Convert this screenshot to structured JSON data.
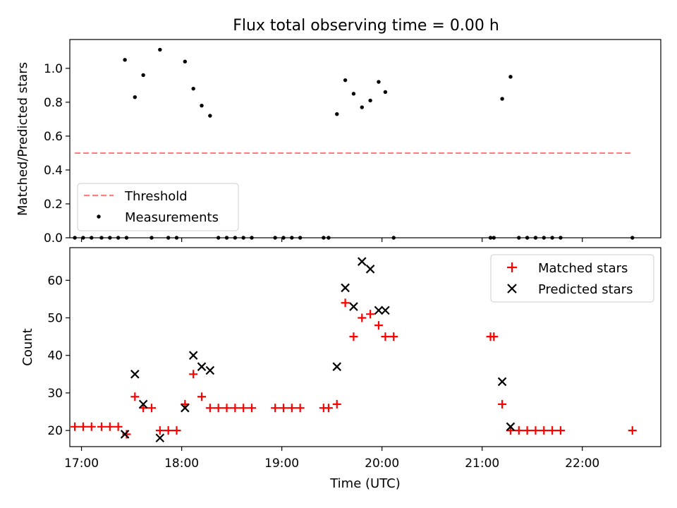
{
  "figure": {
    "title": "Flux total observing time = 0.00 h"
  },
  "chart_data": [
    {
      "type": "scatter",
      "ylabel": "Matched/Predicted stars",
      "xlabel": "",
      "xlim": [
        "16:53",
        "22:47"
      ],
      "ylim": [
        0,
        1.17
      ],
      "y_ticks": [
        "0.0",
        "0.2",
        "0.4",
        "0.6",
        "0.8",
        "1.0"
      ],
      "grid": false,
      "legend_position": "lower-left",
      "series": [
        {
          "name": "Threshold",
          "style": "dashed",
          "color": "#ff7f7f",
          "points": [
            [
              "16:56",
              0.5
            ],
            [
              "22:30",
              0.5
            ]
          ]
        },
        {
          "name": "Measurements",
          "marker": "dot",
          "color": "#000000",
          "points": [
            [
              "16:56",
              0.0
            ],
            [
              "17:01",
              0.0
            ],
            [
              "17:06",
              0.0
            ],
            [
              "17:12",
              0.0
            ],
            [
              "17:17",
              0.0
            ],
            [
              "17:22",
              0.0
            ],
            [
              "17:27",
              0.0
            ],
            [
              "17:26",
              1.05
            ],
            [
              "17:32",
              0.83
            ],
            [
              "17:37",
              0.96
            ],
            [
              "17:42",
              0.0
            ],
            [
              "17:47",
              1.11
            ],
            [
              "17:52",
              0.0
            ],
            [
              "17:57",
              0.0
            ],
            [
              "18:02",
              1.04
            ],
            [
              "18:07",
              0.88
            ],
            [
              "18:12",
              0.78
            ],
            [
              "18:17",
              0.72
            ],
            [
              "18:22",
              0.0
            ],
            [
              "18:27",
              0.0
            ],
            [
              "18:32",
              0.0
            ],
            [
              "18:37",
              0.0
            ],
            [
              "18:42",
              0.0
            ],
            [
              "18:56",
              0.0
            ],
            [
              "19:01",
              0.0
            ],
            [
              "19:06",
              0.0
            ],
            [
              "19:11",
              0.0
            ],
            [
              "19:25",
              0.0
            ],
            [
              "19:28",
              0.0
            ],
            [
              "19:33",
              0.73
            ],
            [
              "19:38",
              0.93
            ],
            [
              "19:43",
              0.85
            ],
            [
              "19:48",
              0.77
            ],
            [
              "19:53",
              0.81
            ],
            [
              "19:58",
              0.92
            ],
            [
              "20:02",
              0.86
            ],
            [
              "20:07",
              0.0
            ],
            [
              "21:05",
              0.0
            ],
            [
              "21:07",
              0.0
            ],
            [
              "21:12",
              0.82
            ],
            [
              "21:17",
              0.95
            ],
            [
              "21:22",
              0.0
            ],
            [
              "21:27",
              0.0
            ],
            [
              "21:32",
              0.0
            ],
            [
              "21:37",
              0.0
            ],
            [
              "21:42",
              0.0
            ],
            [
              "21:47",
              0.0
            ],
            [
              "22:30",
              0.0
            ]
          ]
        }
      ]
    },
    {
      "type": "scatter",
      "ylabel": "Count",
      "xlabel": "Time (UTC)",
      "xlim": [
        "16:53",
        "22:47"
      ],
      "ylim": [
        15.7,
        68.7
      ],
      "x_ticks": [
        "17:00",
        "18:00",
        "19:00",
        "20:00",
        "21:00",
        "22:00"
      ],
      "y_ticks": [
        "20",
        "30",
        "40",
        "50",
        "60"
      ],
      "grid": false,
      "legend_position": "upper-right",
      "series": [
        {
          "name": "Matched stars",
          "marker": "plus",
          "color": "#ff0000",
          "points": [
            [
              "16:56",
              21
            ],
            [
              "17:01",
              21
            ],
            [
              "17:06",
              21
            ],
            [
              "17:12",
              21
            ],
            [
              "17:17",
              21
            ],
            [
              "17:22",
              21
            ],
            [
              "17:27",
              19
            ],
            [
              "17:32",
              29
            ],
            [
              "17:37",
              26
            ],
            [
              "17:42",
              26
            ],
            [
              "17:47",
              20
            ],
            [
              "17:52",
              20
            ],
            [
              "17:57",
              20
            ],
            [
              "18:02",
              27
            ],
            [
              "18:07",
              35
            ],
            [
              "18:12",
              29
            ],
            [
              "18:17",
              26
            ],
            [
              "18:22",
              26
            ],
            [
              "18:27",
              26
            ],
            [
              "18:32",
              26
            ],
            [
              "18:37",
              26
            ],
            [
              "18:42",
              26
            ],
            [
              "18:56",
              26
            ],
            [
              "19:01",
              26
            ],
            [
              "19:06",
              26
            ],
            [
              "19:11",
              26
            ],
            [
              "19:25",
              26
            ],
            [
              "19:28",
              26
            ],
            [
              "19:33",
              27
            ],
            [
              "19:38",
              54
            ],
            [
              "19:43",
              45
            ],
            [
              "19:48",
              50
            ],
            [
              "19:53",
              51
            ],
            [
              "19:58",
              48
            ],
            [
              "20:02",
              45
            ],
            [
              "20:07",
              45
            ],
            [
              "21:05",
              45
            ],
            [
              "21:07",
              45
            ],
            [
              "21:12",
              27
            ],
            [
              "21:17",
              20
            ],
            [
              "21:22",
              20
            ],
            [
              "21:27",
              20
            ],
            [
              "21:32",
              20
            ],
            [
              "21:37",
              20
            ],
            [
              "21:42",
              20
            ],
            [
              "21:47",
              20
            ],
            [
              "22:30",
              20
            ]
          ]
        },
        {
          "name": "Predicted stars",
          "marker": "x",
          "color": "#000000",
          "points": [
            [
              "17:26",
              19
            ],
            [
              "17:32",
              35
            ],
            [
              "17:37",
              27
            ],
            [
              "17:47",
              18
            ],
            [
              "18:02",
              26
            ],
            [
              "18:07",
              40
            ],
            [
              "18:12",
              37
            ],
            [
              "18:17",
              36
            ],
            [
              "19:33",
              37
            ],
            [
              "19:38",
              58
            ],
            [
              "19:43",
              53
            ],
            [
              "19:48",
              65
            ],
            [
              "19:53",
              63
            ],
            [
              "19:58",
              52
            ],
            [
              "20:02",
              52
            ],
            [
              "21:12",
              33
            ],
            [
              "21:17",
              21
            ]
          ]
        }
      ]
    }
  ]
}
